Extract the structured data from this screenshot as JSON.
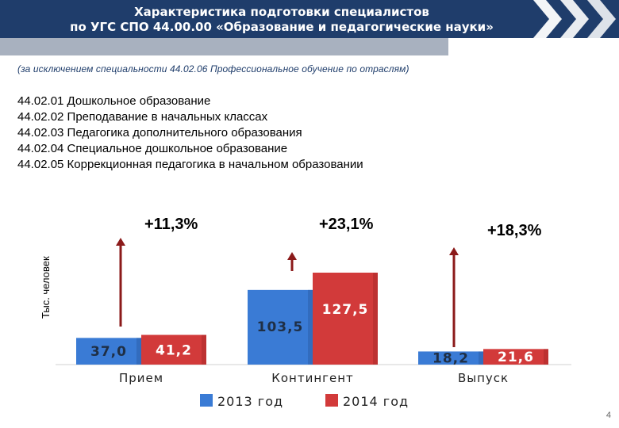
{
  "header": {
    "title_line1": "Характеристика подготовки специалистов",
    "title_line2": "по УГС СПО 44.00.00 «Образование и педагогические науки»"
  },
  "note": "(за исключением специальности 44.02.06 Профессиональное обучение по отраслям)",
  "specialties": [
    "44.02.01 Дошкольное образование",
    "44.02.02 Преподавание в начальных классах",
    "44.02.03 Педагогика дополнительного образования",
    "44.02.04 Специальное дошкольное образование",
    "44.02.05 Коррекционная педагогика в начальном образовании"
  ],
  "colors": {
    "header": "#1f3d6b",
    "series_2013": "#3a7bd5",
    "series_2014": "#d23a3a",
    "arrow": "#8b1a1a"
  },
  "chart_data": {
    "type": "bar",
    "categories": [
      "Прием",
      "Контингент",
      "Выпуск"
    ],
    "series": [
      {
        "name": "2013 год",
        "values": [
          37.0,
          103.5,
          18.2
        ]
      },
      {
        "name": "2014 год",
        "values": [
          41.2,
          127.5,
          21.6
        ]
      }
    ],
    "value_labels": [
      [
        "37,0",
        "103,5",
        "18,2"
      ],
      [
        "41,2",
        "127,5",
        "21,6"
      ]
    ],
    "growth_labels": [
      "+11,3%",
      "+23,1%",
      "+18,3%"
    ],
    "ylabel": "Тыс. человек",
    "ylim": [
      0,
      140
    ],
    "legend": {
      "position": "bottom"
    }
  },
  "page_number": "4"
}
